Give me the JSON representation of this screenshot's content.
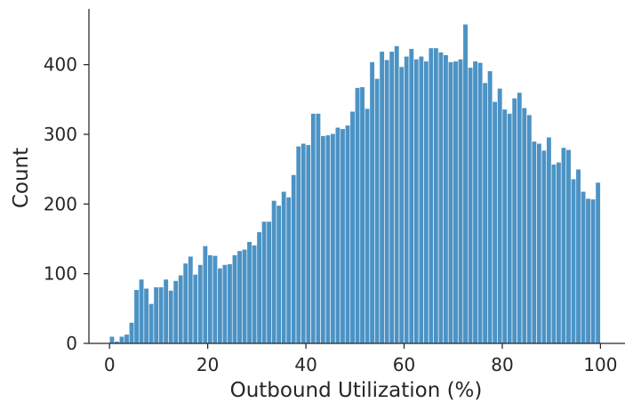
{
  "chart_data": {
    "type": "bar",
    "title": "",
    "xlabel": "Outbound Utilization (%)",
    "ylabel": "Count",
    "xlim": [
      -4.2,
      105
    ],
    "ylim": [
      0,
      480
    ],
    "xticks": [
      0,
      20,
      40,
      60,
      80,
      100
    ],
    "xtick_labels": [
      "0",
      "20",
      "40",
      "60",
      "80",
      "100"
    ],
    "yticks": [
      0,
      100,
      200,
      300,
      400
    ],
    "ytick_labels": [
      "0",
      "100",
      "200",
      "300",
      "400"
    ],
    "grid": false,
    "legend": "none",
    "bin_width": 1,
    "bar_color": "#4c93c5",
    "x": [
      0,
      1,
      2,
      3,
      4,
      5,
      6,
      7,
      8,
      9,
      10,
      11,
      12,
      13,
      14,
      15,
      16,
      17,
      18,
      19,
      20,
      21,
      22,
      23,
      24,
      25,
      26,
      27,
      28,
      29,
      30,
      31,
      32,
      33,
      34,
      35,
      36,
      37,
      38,
      39,
      40,
      41,
      42,
      43,
      44,
      45,
      46,
      47,
      48,
      49,
      50,
      51,
      52,
      53,
      54,
      55,
      56,
      57,
      58,
      59,
      60,
      61,
      62,
      63,
      64,
      65,
      66,
      67,
      68,
      69,
      70,
      71,
      72,
      73,
      74,
      75,
      76,
      77,
      78,
      79,
      80,
      81,
      82,
      83,
      84,
      85,
      86,
      87,
      88,
      89,
      90,
      91,
      92,
      93,
      94,
      95,
      96,
      97,
      98,
      99
    ],
    "values": [
      10,
      3,
      10,
      13,
      30,
      77,
      92,
      79,
      57,
      81,
      81,
      92,
      76,
      90,
      98,
      115,
      125,
      99,
      113,
      140,
      127,
      126,
      108,
      113,
      114,
      127,
      133,
      135,
      146,
      141,
      160,
      175,
      175,
      205,
      198,
      218,
      210,
      242,
      283,
      287,
      285,
      330,
      330,
      298,
      299,
      301,
      310,
      308,
      313,
      333,
      367,
      368,
      337,
      404,
      380,
      419,
      407,
      419,
      427,
      397,
      412,
      423,
      408,
      412,
      405,
      424,
      424,
      418,
      414,
      404,
      405,
      408,
      458,
      396,
      405,
      403,
      374,
      391,
      347,
      366,
      336,
      330,
      352,
      360,
      338,
      328,
      290,
      287,
      277,
      296,
      257,
      260,
      281,
      278,
      236,
      250,
      218,
      208,
      207,
      231
    ]
  }
}
